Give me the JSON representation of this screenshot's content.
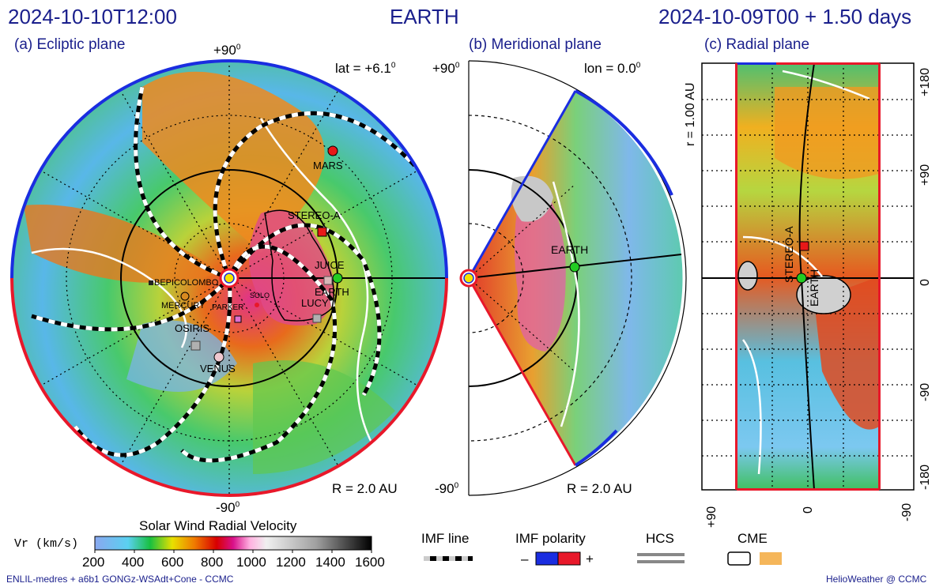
{
  "header": {
    "left_time": "2024-10-10T12:00",
    "center_title": "EARTH",
    "right_time": "2024-10-09T00 + 1.50 days"
  },
  "panels": {
    "a": {
      "title": "(a) Ecliptic plane",
      "top": "+90",
      "bottom": "-90",
      "lat": "lat = +6.1",
      "radius": "R = 2.0 AU"
    },
    "b": {
      "title": "(b) Meridional plane",
      "top": "+90",
      "bottom": "-90",
      "lon": "lon = 0.0",
      "radius": "R = 2.0 AU",
      "earth_label": "EARTH"
    },
    "c": {
      "title": "(c) Radial plane",
      "r_label": "r = 1.00 AU",
      "right_ticks": [
        "+180",
        "+90",
        "0",
        "-90",
        "-180"
      ],
      "bottom_ticks": [
        "+90",
        "0",
        "-90"
      ],
      "stereo_label": "STEREO-A",
      "earth_label": "EARTH"
    }
  },
  "bodies": {
    "mars": "MARS",
    "stereo_a": "STEREO-A",
    "juice": "JUICE",
    "earth": "EARTH",
    "lucy": "LUCY",
    "bepicolombo": "BEPICOLOMBO",
    "mercury": "MERCURY",
    "parker": "PARKER",
    "solo": "SOLO",
    "osiris": "OSIRIS",
    "venus": "VENUS"
  },
  "colorbar": {
    "title": "Solar Wind Radial Velocity",
    "unit": "Vr (km/s)",
    "ticks": [
      "200",
      "400",
      "600",
      "800",
      "1000",
      "1200",
      "1400",
      "1600"
    ]
  },
  "legend": {
    "imf_line": "IMF line",
    "imf_polarity": "IMF polarity",
    "minus": "–",
    "plus": "+",
    "hcs": "HCS",
    "cme": "CME"
  },
  "footer": {
    "left": "ENLIL-medres + a6b1 GONGz-WSAdt+Cone - CCMC",
    "right": "HelioWeather @ CCMC"
  },
  "colors": {
    "title": "#1a1f8c",
    "positive": "#e8182a",
    "negative": "#1a2de0",
    "cme": "#f5b65a",
    "earth": "#22cc22",
    "mars": "#e81818"
  },
  "chart_data": {
    "type": "heatmap",
    "title": "Solar Wind Radial Velocity",
    "colorbar_range": [
      200,
      1600
    ],
    "colorbar_unit": "km/s",
    "panels": [
      "(a) Ecliptic plane",
      "(b) Meridional plane",
      "(c) Radial plane"
    ]
  }
}
